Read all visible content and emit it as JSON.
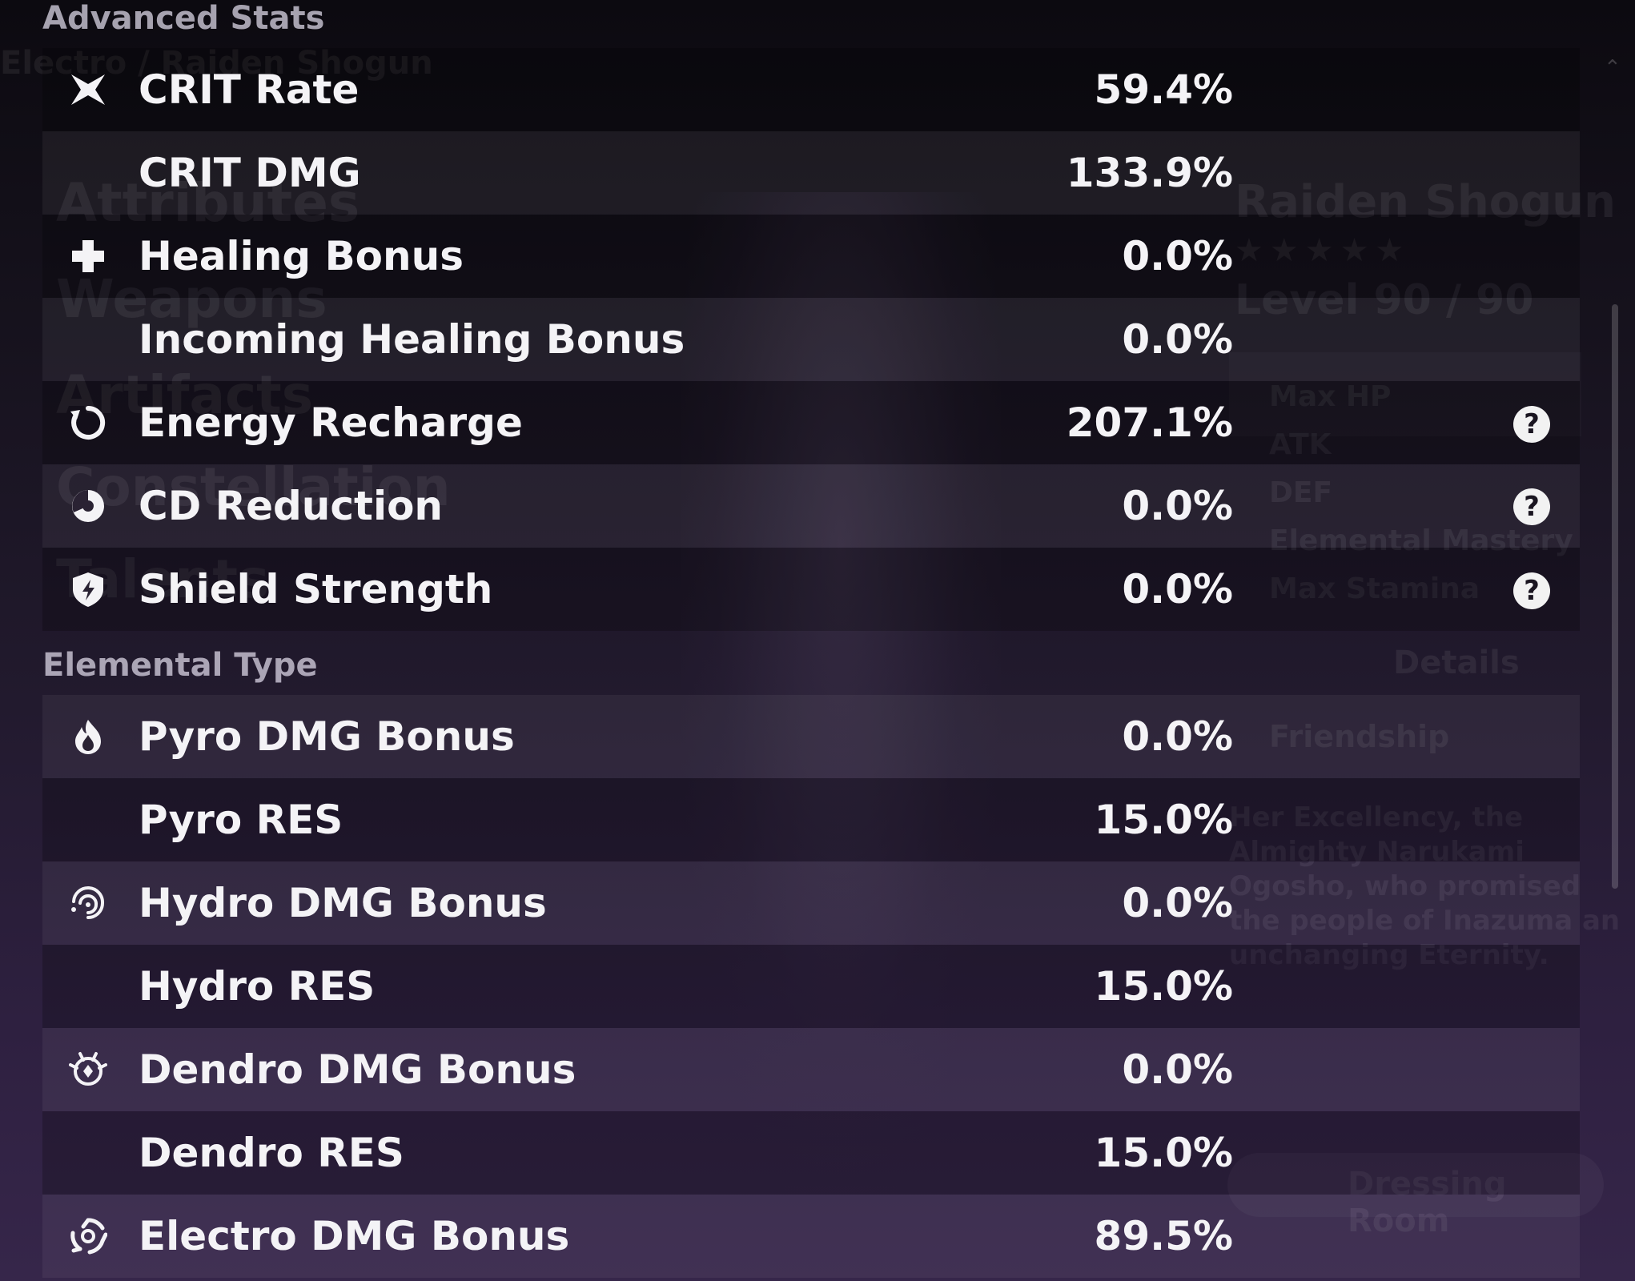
{
  "background": {
    "breadcrumb": "Electro / Raiden Shogun",
    "menu": [
      "Attributes",
      "Weapons",
      "Artifacts",
      "Constellation",
      "Talents"
    ],
    "character_name": "Raiden Shogun",
    "stars": "★★★★★",
    "level": "Level 90 / 90",
    "attributes": [
      "Max HP",
      "ATK",
      "DEF",
      "Elemental Mastery",
      "Max Stamina"
    ],
    "details": "Details",
    "friendship": "Friendship",
    "description": "Her Excellency, the Almighty Narukami Ogosho, who promised the people of Inazuma an unchanging Eternity.",
    "dressing_room": "Dressing Room"
  },
  "advanced_title": "Advanced Stats",
  "advanced_stats": [
    {
      "label": "CRIT Rate",
      "value": "59.4%",
      "icon": "crit-rate-icon"
    },
    {
      "label": "CRIT DMG",
      "value": "133.9%",
      "icon": ""
    },
    {
      "label": "Healing Bonus",
      "value": "0.0%",
      "icon": "healing-cross-icon"
    },
    {
      "label": "Incoming Healing Bonus",
      "value": "0.0%",
      "icon": ""
    },
    {
      "label": "Energy Recharge",
      "value": "207.1%",
      "icon": "energy-recharge-icon"
    },
    {
      "label": "CD Reduction",
      "value": "0.0%",
      "icon": "cd-reduction-icon"
    },
    {
      "label": "Shield Strength",
      "value": "0.0%",
      "icon": "shield-icon"
    }
  ],
  "elemental_title": "Elemental Type",
  "elemental_stats": [
    {
      "label": "Pyro DMG Bonus",
      "value": "0.0%",
      "icon": "pyro-icon"
    },
    {
      "label": "Pyro RES",
      "value": "15.0%",
      "icon": ""
    },
    {
      "label": "Hydro DMG Bonus",
      "value": "0.0%",
      "icon": "hydro-icon"
    },
    {
      "label": "Hydro RES",
      "value": "15.0%",
      "icon": ""
    },
    {
      "label": "Dendro DMG Bonus",
      "value": "0.0%",
      "icon": "dendro-icon"
    },
    {
      "label": "Dendro RES",
      "value": "15.0%",
      "icon": ""
    },
    {
      "label": "Electro DMG Bonus",
      "value": "89.5%",
      "icon": "electro-icon"
    }
  ],
  "help_label": "?"
}
